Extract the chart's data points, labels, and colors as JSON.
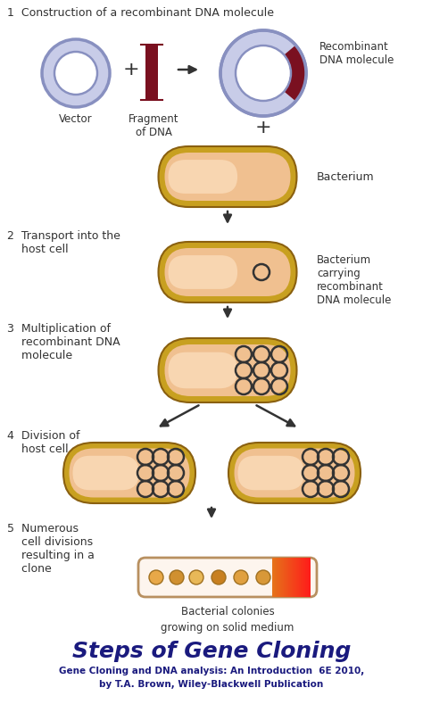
{
  "bg_color": "#ffffff",
  "title": "Steps of Gene Cloning",
  "subtitle1": "Gene Cloning and DNA analysis: An Introduction  6E 2010,",
  "subtitle2": "by T.A. Brown, Wiley-Blackwell Publication",
  "step1_label": "1  Construction of a recombinant DNA molecule",
  "step2_label": "2  Transport into the\n    host cell",
  "step3_label": "3  Multiplication of\n    recombinant DNA\n    molecule",
  "step4_label": "4  Division of\n    host cell",
  "step5_label": "5  Numerous\n    cell divisions\n    resulting in a\n    clone",
  "vector_label": "Vector",
  "fragment_label": "Fragment\nof DNA",
  "recomb_label": "Recombinant\nDNA molecule",
  "bacterium_label": "Bacterium",
  "bact_carry_label": "Bacterium\ncarrying\nrecombinant\nDNA molecule",
  "colonies_label": "Bacterial colonies\ngrowing on solid medium",
  "ring_outer_color": "#8890c0",
  "ring_fill": "#c8cce8",
  "ring_inner_bg": "#ffffff",
  "fragment_color": "#7a1020",
  "arrow_color": "#333333",
  "bact_outer_color": "#c8a020",
  "bact_inner_color": "#f0c090",
  "bact_highlight": "#fce0c0",
  "plasmid_ring_color": "#333333",
  "title_color": "#1a1a7e",
  "label_color": "#333333",
  "step_label_color": "#333333",
  "colony_colors": [
    "#e8a848",
    "#d09030",
    "#e8b858",
    "#c88020",
    "#e0a040",
    "#d89838"
  ],
  "plate_fill": "#fdf5ee",
  "plate_border": "#b89060",
  "plate_gradient_colors": [
    "#ff9060",
    "#ff6030",
    "#e04010"
  ]
}
